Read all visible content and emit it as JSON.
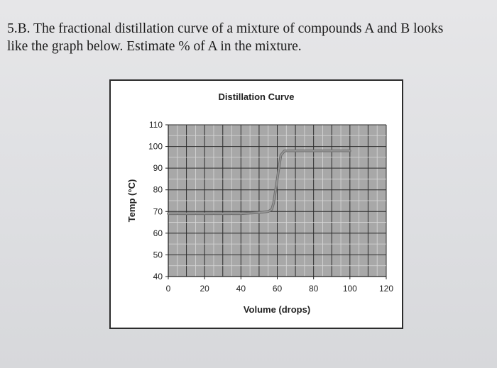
{
  "question": {
    "line1": "5.B. The fractional distillation curve of a mixture of compounds A and B looks",
    "line2": "like the graph below. Estimate % of A in the mixture."
  },
  "chart_data": {
    "type": "line",
    "title": "Distillation Curve",
    "xlabel": "Volume (drops)",
    "ylabel": "Temp (°C)",
    "xlim": [
      0,
      120
    ],
    "ylim": [
      40,
      110
    ],
    "xticks": [
      0,
      20,
      40,
      60,
      80,
      100,
      120
    ],
    "yticks": [
      40,
      50,
      60,
      70,
      80,
      90,
      100,
      110
    ],
    "grid": true,
    "series": [
      {
        "x": [
          0,
          10,
          20,
          30,
          40,
          50,
          55,
          57,
          58,
          60,
          62,
          64,
          66,
          70,
          80,
          90,
          100
        ],
        "y": [
          69,
          69,
          69,
          69,
          69,
          69.5,
          70,
          71,
          74,
          85,
          96,
          98,
          98,
          98,
          98,
          98,
          98
        ],
        "color": "#999999"
      }
    ]
  }
}
